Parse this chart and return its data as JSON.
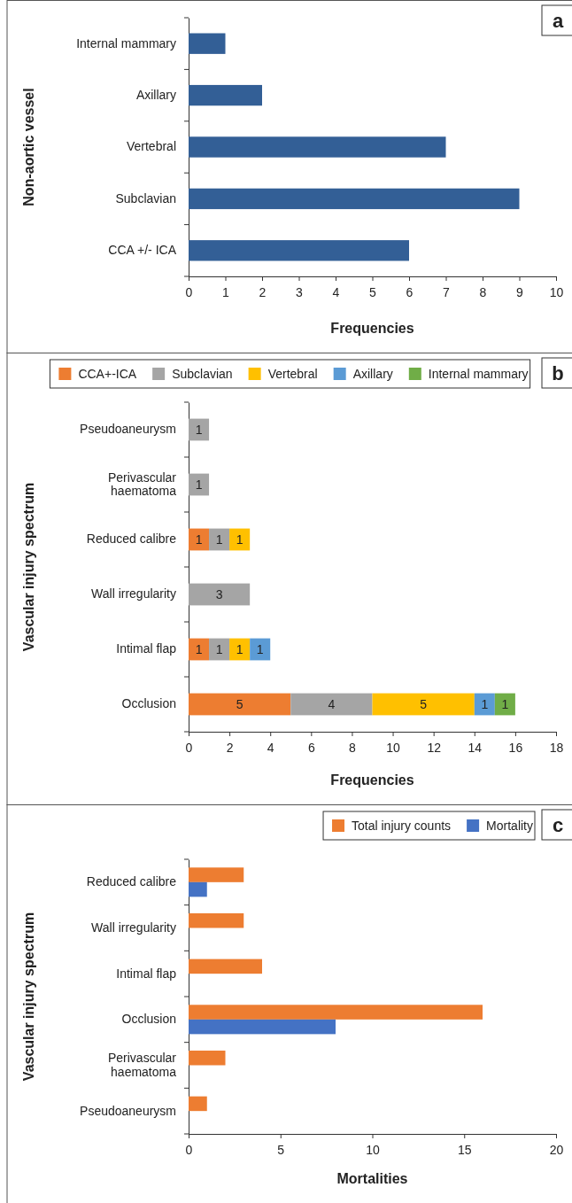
{
  "chart_data": [
    {
      "type": "bar",
      "orientation": "horizontal",
      "ylabel": "Non-aortic vessel",
      "xlabel": "Frequencies",
      "annotations": [
        "a"
      ],
      "categories": [
        "Internal mammary",
        "Axillary",
        "Vertebral",
        "Subclavian",
        "CCA +/- ICA"
      ],
      "values": [
        1,
        2,
        7,
        9,
        6
      ],
      "color": "#335f96",
      "xlim": [
        0,
        10
      ],
      "xticks": [
        0,
        1,
        2,
        3,
        4,
        5,
        6,
        7,
        8,
        9,
        10
      ],
      "grid": false,
      "legend": false
    },
    {
      "type": "bar",
      "orientation": "horizontal",
      "stacked": true,
      "data_labels": true,
      "ylabel": "Vascular injury spectrum",
      "xlabel": "Frequencies",
      "annotations": [
        "b"
      ],
      "categories": [
        "Pseudoaneurysm",
        "Perivascular haematoma",
        "Reduced calibre",
        "Wall irregularity",
        "Intimal flap",
        "Occlusion"
      ],
      "series": [
        {
          "name": "CCA+-ICA",
          "color": "#ed7d31",
          "values": [
            null,
            null,
            1,
            null,
            1,
            5
          ]
        },
        {
          "name": "Subclavian",
          "color": "#a5a5a5",
          "values": [
            1,
            1,
            1,
            3,
            1,
            4
          ]
        },
        {
          "name": "Vertebral",
          "color": "#ffc000",
          "values": [
            null,
            null,
            1,
            null,
            1,
            5
          ]
        },
        {
          "name": "Axillary",
          "color": "#5b9bd5",
          "values": [
            null,
            null,
            null,
            null,
            1,
            1
          ]
        },
        {
          "name": "Internal mammary",
          "color": "#70ad47",
          "values": [
            null,
            null,
            null,
            null,
            null,
            1
          ]
        }
      ],
      "xlim": [
        0,
        18
      ],
      "xticks": [
        0,
        2,
        4,
        6,
        8,
        10,
        12,
        14,
        16,
        18
      ],
      "grid": false,
      "legend": "top"
    },
    {
      "type": "bar",
      "orientation": "horizontal",
      "ylabel": "Vascular injury spectrum",
      "xlabel": "Mortalities",
      "annotations": [
        "c"
      ],
      "categories": [
        "Reduced calibre",
        "Wall irregularity",
        "Intimal flap",
        "Occlusion",
        "Perivascular haematoma",
        "Pseudoaneurysm"
      ],
      "series": [
        {
          "name": "Total injury counts",
          "color": "#ed7d31",
          "values": [
            3,
            3,
            4,
            16,
            2,
            1
          ]
        },
        {
          "name": "Mortality",
          "color": "#4472c4",
          "values": [
            1,
            0,
            0,
            8,
            0,
            0
          ]
        }
      ],
      "xlim": [
        0,
        20
      ],
      "xticks": [
        0,
        5,
        10,
        15,
        20
      ],
      "grid": false,
      "legend": "top right"
    }
  ]
}
